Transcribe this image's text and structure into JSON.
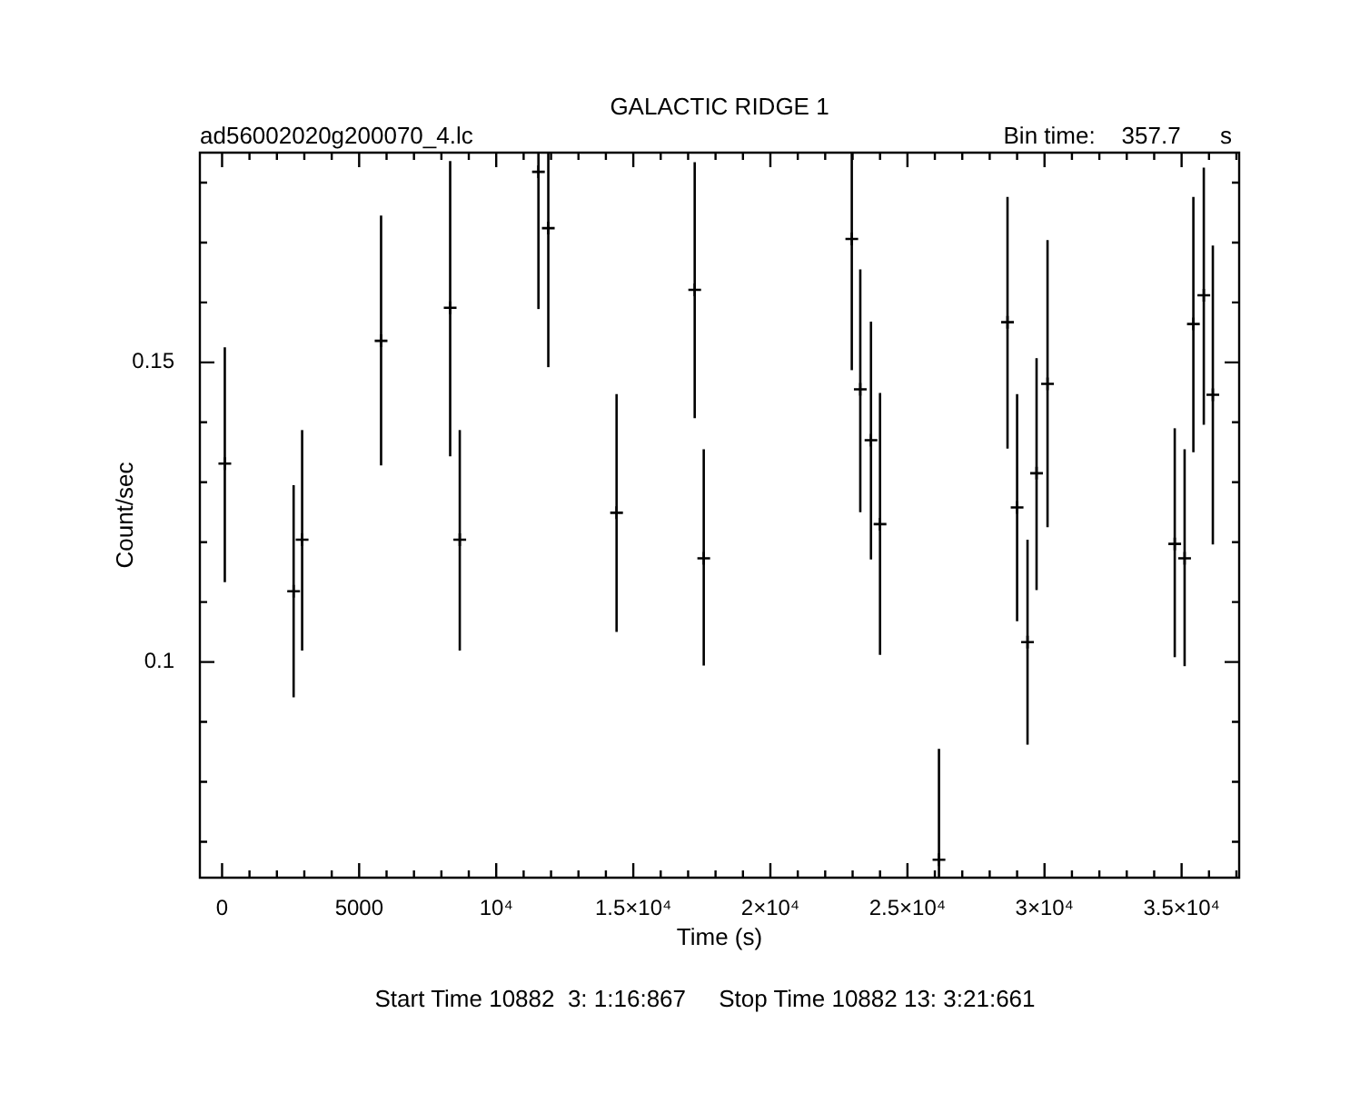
{
  "chart_data": {
    "type": "scatter",
    "title": "GALACTIC RIDGE 1",
    "xlabel": "Time (s)",
    "ylabel": "Count/sec",
    "annotations": [
      "ad56002020g200070_4.lc",
      "Bin time:    357.7      s",
      "Start Time 10882  3: 1:16:867     Stop Time 10882 13: 3:21:661"
    ],
    "x": [
      100,
      2610,
      2920,
      5800,
      8320,
      8670,
      11540,
      11900,
      14390,
      17240,
      17570,
      22970,
      23280,
      23670,
      24000,
      26150,
      28650,
      29000,
      29380,
      29710,
      30110,
      34750,
      35110,
      35430,
      35810,
      36140
    ],
    "values": [
      0.1331,
      0.1118,
      0.1204,
      0.1536,
      0.1591,
      0.1204,
      0.1818,
      0.1724,
      0.1249,
      0.1621,
      0.1173,
      0.1706,
      0.1455,
      0.137,
      0.123,
      0.067,
      0.1567,
      0.1258,
      0.1033,
      0.1315,
      0.1464,
      0.1197,
      0.1173,
      0.1564,
      0.1612,
      0.1446
    ],
    "errors": [
      [
        0.1133,
        0.1525
      ],
      [
        0.0941,
        0.1295
      ],
      [
        0.1019,
        0.1387
      ],
      [
        0.1328,
        0.1745
      ],
      [
        0.1343,
        0.1836
      ],
      [
        0.1019,
        0.1387
      ],
      [
        0.1589,
        0.185
      ],
      [
        0.1492,
        0.185
      ],
      [
        0.105,
        0.1447
      ],
      [
        0.1407,
        0.1834
      ],
      [
        0.0994,
        0.1355
      ],
      [
        0.1487,
        0.185
      ],
      [
        0.125,
        0.1655
      ],
      [
        0.1171,
        0.1568
      ],
      [
        0.1012,
        0.1449
      ],
      [
        0.064,
        0.0855
      ],
      [
        0.1356,
        0.1776
      ],
      [
        0.1068,
        0.1447
      ],
      [
        0.0862,
        0.1204
      ],
      [
        0.112,
        0.1507
      ],
      [
        0.1225,
        0.1704
      ],
      [
        0.1008,
        0.139
      ],
      [
        0.0993,
        0.1355
      ],
      [
        0.135,
        0.1776
      ],
      [
        0.1396,
        0.1825
      ],
      [
        0.1196,
        0.1695
      ]
    ],
    "marker": "cross",
    "color": "#000000",
    "grid": false,
    "legend": false,
    "xlim": [
      -810,
      37100
    ],
    "ylim": [
      0.064,
      0.185
    ],
    "xticks": [
      0,
      {
        "value": 1000,
        "label": null
      },
      {
        "value": 2000,
        "label": null
      },
      {
        "value": 3000,
        "label": null
      },
      {
        "value": 4000,
        "label": null
      },
      5000,
      {
        "value": 6000,
        "label": null
      },
      {
        "value": 7000,
        "label": null
      },
      {
        "value": 8000,
        "label": null
      },
      {
        "value": 9000,
        "label": null
      },
      {
        "value": 10000,
        "label": "10⁴"
      },
      {
        "value": 11000,
        "label": null
      },
      {
        "value": 12000,
        "label": null
      },
      {
        "value": 13000,
        "label": null
      },
      {
        "value": 14000,
        "label": null
      },
      {
        "value": 15000,
        "label": "1.5×10⁴"
      },
      {
        "value": 16000,
        "label": null
      },
      {
        "value": 17000,
        "label": null
      },
      {
        "value": 18000,
        "label": null
      },
      {
        "value": 19000,
        "label": null
      },
      {
        "value": 20000,
        "label": "2×10⁴"
      },
      {
        "value": 21000,
        "label": null
      },
      {
        "value": 22000,
        "label": null
      },
      {
        "value": 23000,
        "label": null
      },
      {
        "value": 24000,
        "label": null
      },
      {
        "value": 25000,
        "label": "2.5×10⁴"
      },
      {
        "value": 26000,
        "label": null
      },
      {
        "value": 27000,
        "label": null
      },
      {
        "value": 28000,
        "label": null
      },
      {
        "value": 29000,
        "label": null
      },
      {
        "value": 30000,
        "label": "3×10⁴"
      },
      {
        "value": 31000,
        "label": null
      },
      {
        "value": 32000,
        "label": null
      },
      {
        "value": 33000,
        "label": null
      },
      {
        "value": 34000,
        "label": null
      },
      {
        "value": 35000,
        "label": "3.5×10⁴"
      },
      {
        "value": 36000,
        "label": null
      },
      {
        "value": 37000,
        "label": null
      }
    ],
    "yticks": [
      {
        "value": 0.07,
        "label": null
      },
      {
        "value": 0.08,
        "label": null
      },
      {
        "value": 0.09,
        "label": null
      },
      0.1,
      {
        "value": 0.11,
        "label": null
      },
      {
        "value": 0.12,
        "label": null
      },
      {
        "value": 0.13,
        "label": null
      },
      {
        "value": 0.14,
        "label": null
      },
      0.15,
      {
        "value": 0.16,
        "label": null
      },
      {
        "value": 0.17,
        "label": null
      },
      {
        "value": 0.18,
        "label": null
      }
    ]
  }
}
